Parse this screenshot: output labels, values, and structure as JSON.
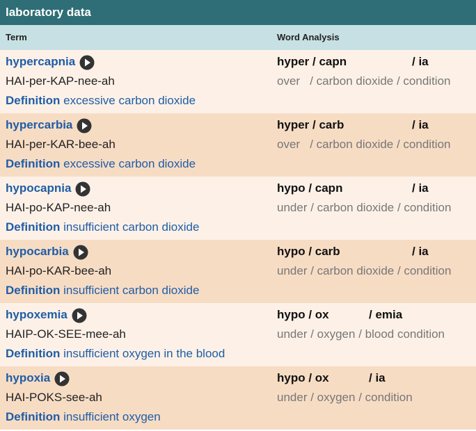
{
  "header": {
    "title": "laboratory data"
  },
  "table": {
    "columns": [
      "Term",
      "Word Analysis"
    ],
    "rows": [
      {
        "term": "hypercapnia",
        "pronunciation": "HAI-per-KAP-nee-ah",
        "definition_label": "Definition",
        "definition": "excessive carbon dioxide",
        "parts": [
          "hyper / capn",
          "/ ia"
        ],
        "meaning": "over   / carbon dioxide / condition"
      },
      {
        "term": "hypercarbia",
        "pronunciation": "HAI-per-KAR-bee-ah",
        "definition_label": "Definition",
        "definition": "excessive carbon dioxide",
        "parts": [
          "hyper / carb",
          "/ ia"
        ],
        "meaning": "over   / carbon dioxide / condition"
      },
      {
        "term": "hypocapnia",
        "pronunciation": "HAI-po-KAP-nee-ah",
        "definition_label": "Definition",
        "definition": "insufficient carbon dioxide",
        "parts": [
          "hypo / capn",
          "/ ia"
        ],
        "meaning": "under / carbon dioxide / condition"
      },
      {
        "term": "hypocarbia",
        "pronunciation": "HAI-po-KAR-bee-ah",
        "definition_label": "Definition",
        "definition": "insufficient carbon dioxide",
        "parts": [
          "hypo / carb",
          "/ ia"
        ],
        "meaning": "under / carbon dioxide / condition"
      },
      {
        "term": "hypoxemia",
        "pronunciation": "HAIP-OK-SEE-mee-ah",
        "definition_label": "Definition",
        "definition": "insufficient oxygen in the blood",
        "parts": [
          "hypo / ox",
          "/ emia"
        ],
        "meaning": "under / oxygen / blood condition"
      },
      {
        "term": "hypoxia",
        "pronunciation": "HAI-POKS-see-ah",
        "definition_label": "Definition",
        "definition": "insufficient oxygen",
        "parts": [
          "hypo / ox",
          "/ ia"
        ],
        "meaning": "under / oxygen / condition"
      }
    ]
  }
}
